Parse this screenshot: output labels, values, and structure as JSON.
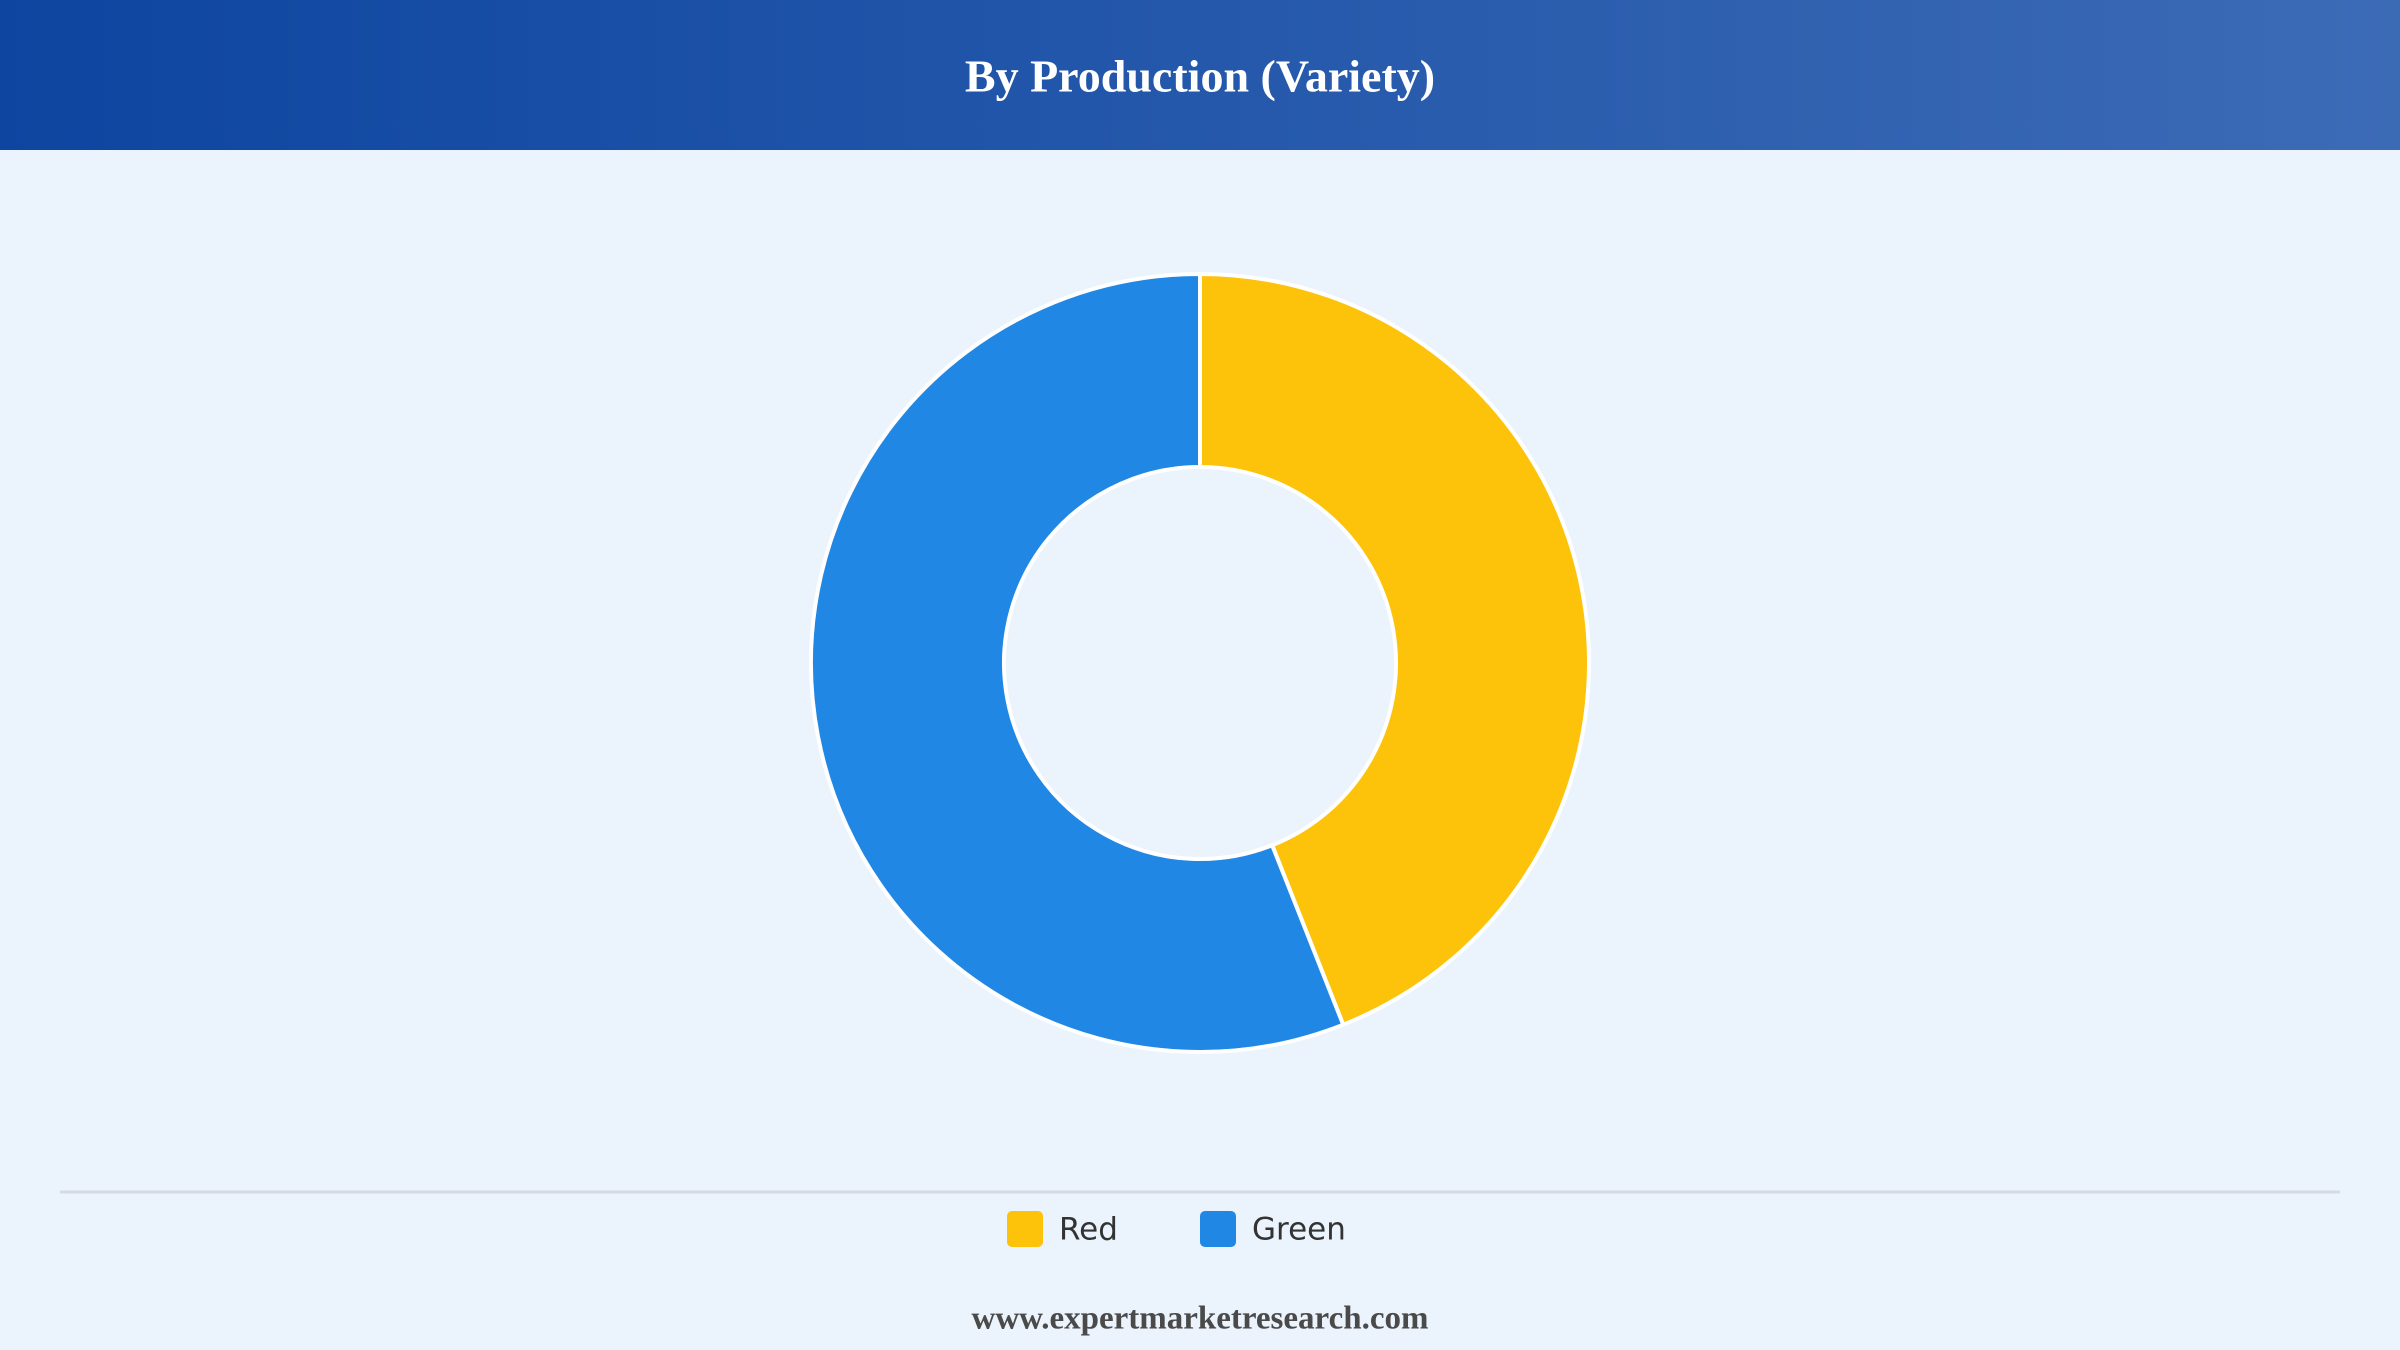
{
  "chart_data": {
    "type": "pie",
    "title": "By Production (Variety)",
    "categories": [
      "Red",
      "Green"
    ],
    "values": [
      44,
      56
    ],
    "colors": [
      "#fdc20a",
      "#2087e4"
    ],
    "donut": true,
    "footer": "www.expertmarketresearch.com"
  }
}
